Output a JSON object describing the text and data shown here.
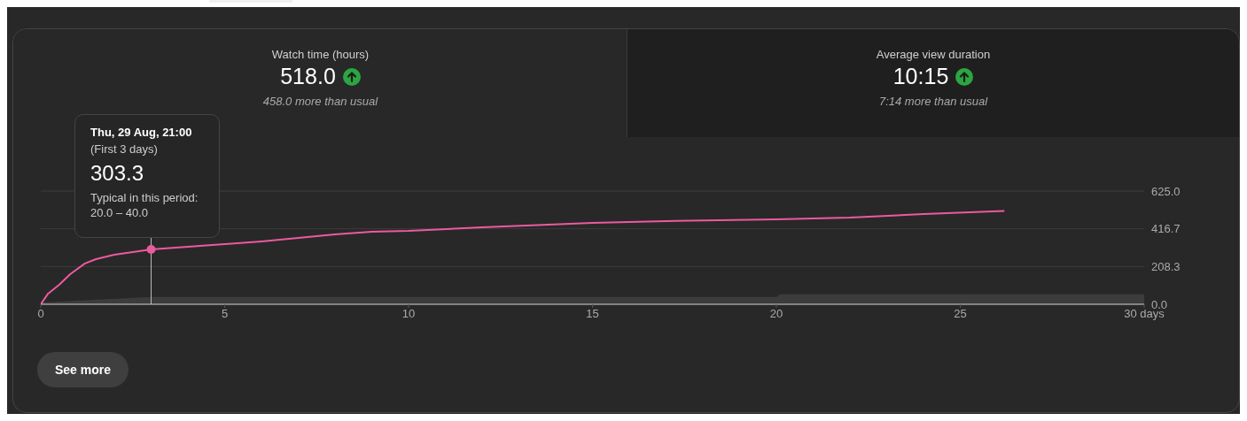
{
  "chart_data": {
    "type": "line",
    "annotations": [
      "Watch time (hours)",
      "518.0",
      "458.0 more than usual",
      "Average view duration",
      "10:15",
      "7:14 more than usual",
      "Thu, 29 Aug, 21:00",
      "(First 3 days)",
      "303.3",
      "Typical in this period:",
      "20.0 – 40.0",
      "See more"
    ],
    "series": [
      {
        "type": "area",
        "color": "#3c3c3c",
        "x": [
          0,
          3,
          20,
          20.1,
          30
        ],
        "values": [
          10,
          40,
          40,
          55,
          55
        ]
      },
      {
        "color": "#ec5a9f",
        "x": [
          0,
          0.2,
          0.5,
          0.8,
          1.2,
          1.5,
          2,
          2.5,
          3,
          4,
          5,
          6,
          7,
          8,
          9,
          10,
          12,
          15,
          17,
          20,
          22,
          24,
          26.2
        ],
        "values": [
          0,
          59,
          107,
          166,
          225,
          249,
          273,
          288,
          303,
          317,
          332,
          347,
          366,
          386,
          400,
          405,
          425,
          449,
          459,
          469,
          479,
          498,
          515
        ]
      }
    ],
    "xlim": [
      0,
      30
    ],
    "xticks": [
      0,
      5,
      10,
      15,
      20,
      25,
      {
        "value": 30,
        "label": "30 days"
      }
    ],
    "ylim": [
      0,
      625
    ],
    "yticks": [
      {
        "value": 0,
        "label": "0.0"
      },
      208.3,
      416.7,
      {
        "value": 625,
        "label": "625.0"
      }
    ],
    "grid": "y",
    "marker": "none",
    "line_style": "solid",
    "ref_lines": [
      {
        "axis": "x",
        "value": 3,
        "label": null,
        "color": "#bbbbbb"
      }
    ]
  }
}
